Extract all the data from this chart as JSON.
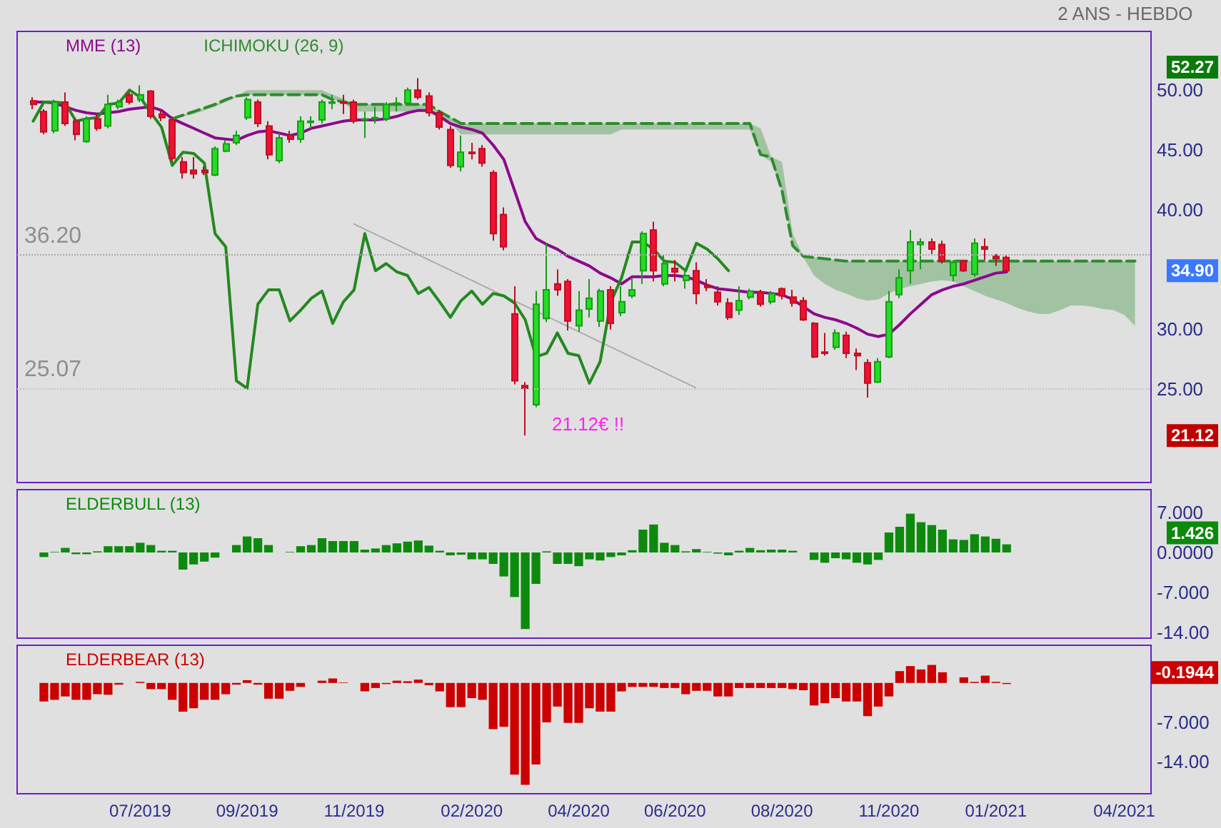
{
  "chart_data": [
    {
      "type": "candlestick",
      "categories": [
        null,
        null,
        null,
        null,
        null,
        null,
        null,
        null,
        null,
        null,
        null,
        null,
        null,
        null,
        null,
        null,
        null,
        null,
        null,
        null,
        null,
        null,
        null,
        null,
        null,
        null,
        null,
        null,
        null,
        null,
        null,
        null,
        null,
        null,
        null,
        null,
        null,
        null,
        null,
        null,
        null,
        null,
        null,
        null,
        null,
        null,
        null,
        null,
        null,
        null,
        null,
        null,
        null,
        null,
        null,
        null,
        null,
        null,
        null,
        null,
        null,
        null,
        null,
        null,
        null,
        null,
        null,
        null,
        null,
        null,
        null,
        null,
        null,
        null,
        null,
        null,
        null,
        null,
        null,
        null,
        null,
        null,
        null,
        null,
        null,
        null,
        null,
        null,
        null,
        null,
        null,
        null,
        null,
        null,
        null,
        null,
        null,
        null,
        null,
        null,
        null,
        null,
        null,
        null,
        null,
        null
      ],
      "ohlc": [
        null,
        [
          49.1,
          49.4,
          48.4,
          48.8
        ],
        [
          48.2,
          48.4,
          46.3,
          46.5
        ],
        [
          46.6,
          49.2,
          46.4,
          49.0
        ],
        [
          49.0,
          49.8,
          47.0,
          47.2
        ],
        [
          47.4,
          47.6,
          45.8,
          46.3
        ],
        [
          45.7,
          47.8,
          45.6,
          47.6
        ],
        [
          47.6,
          48.0,
          46.6,
          46.8
        ],
        [
          47.0,
          49.6,
          46.8,
          48.8
        ],
        [
          48.6,
          49.2,
          48.4,
          49.0
        ],
        [
          49.6,
          49.8,
          48.8,
          49.0
        ],
        [
          49.2,
          50.4,
          49.0,
          49.6
        ],
        [
          49.9,
          50.0,
          47.6,
          47.8
        ],
        [
          48.0,
          48.4,
          47.4,
          47.7
        ],
        [
          47.5,
          47.8,
          44.0,
          44.3
        ],
        [
          44.0,
          44.4,
          42.6,
          43.1
        ],
        [
          43.3,
          44.4,
          42.6,
          43.0
        ],
        [
          43.3,
          43.6,
          42.9,
          43.1
        ],
        [
          42.9,
          45.3,
          42.8,
          45.1
        ],
        [
          44.9,
          45.8,
          44.8,
          45.5
        ],
        [
          45.6,
          46.6,
          45.4,
          46.2
        ],
        [
          47.7,
          49.4,
          47.5,
          49.2
        ],
        [
          49.0,
          49.2,
          46.9,
          47.2
        ],
        [
          47.0,
          47.4,
          44.2,
          44.6
        ],
        [
          44.1,
          46.4,
          43.9,
          46.0
        ],
        [
          46.2,
          46.6,
          45.6,
          45.9
        ],
        [
          45.9,
          47.8,
          45.6,
          47.4
        ],
        [
          47.3,
          47.8,
          46.8,
          47.4
        ],
        [
          47.5,
          49.2,
          47.2,
          49.0
        ],
        [
          48.9,
          49.6,
          48.4,
          49.0
        ],
        [
          49.0,
          49.6,
          48.0,
          48.9
        ],
        [
          49.0,
          49.2,
          47.2,
          47.4
        ],
        [
          47.5,
          48.2,
          46.0,
          47.6
        ],
        [
          47.6,
          48.6,
          47.2,
          47.7
        ],
        [
          47.6,
          49.0,
          47.4,
          48.8
        ],
        [
          48.8,
          49.4,
          48.2,
          48.9
        ],
        [
          48.9,
          50.2,
          48.7,
          50.0
        ],
        [
          50.0,
          51.0,
          49.2,
          49.4
        ],
        [
          49.5,
          49.8,
          47.8,
          48.1
        ],
        [
          48.1,
          48.3,
          46.7,
          46.9
        ],
        [
          46.7,
          47.0,
          43.5,
          43.7
        ],
        [
          43.6,
          46.2,
          43.2,
          44.8
        ],
        [
          44.8,
          45.6,
          44.2,
          44.7
        ],
        [
          45.1,
          45.4,
          43.6,
          43.9
        ],
        [
          43.1,
          43.3,
          37.4,
          38.0
        ],
        [
          39.6,
          40.2,
          36.6,
          36.9
        ],
        [
          31.3,
          33.6,
          25.4,
          25.7
        ],
        [
          25.3,
          25.6,
          21.12,
          25.07
        ],
        [
          23.7,
          33.2,
          23.5,
          32.1
        ],
        [
          30.9,
          37.2,
          30.6,
          33.3
        ],
        [
          33.8,
          35.0,
          32.8,
          33.3
        ],
        [
          34.0,
          34.2,
          29.9,
          30.7
        ],
        [
          30.3,
          33.2,
          29.8,
          31.6
        ],
        [
          31.7,
          34.2,
          31.0,
          32.6
        ],
        [
          30.7,
          33.4,
          30.2,
          33.2
        ],
        [
          33.3,
          33.6,
          30.0,
          30.5
        ],
        [
          31.4,
          33.6,
          31.1,
          32.3
        ],
        [
          32.8,
          34.3,
          32.6,
          33.3
        ],
        [
          34.9,
          38.2,
          33.8,
          38.0
        ],
        [
          38.3,
          39.0,
          34.0,
          34.9
        ],
        [
          33.8,
          36.2,
          33.6,
          35.5
        ],
        [
          35.1,
          35.8,
          34.0,
          34.8
        ],
        [
          34.1,
          35.0,
          33.4,
          34.5
        ],
        [
          34.9,
          35.6,
          32.1,
          33.0
        ],
        [
          33.6,
          34.2,
          33.2,
          33.5
        ],
        [
          33.1,
          33.6,
          32.0,
          32.3
        ],
        [
          32.2,
          32.6,
          30.8,
          31.0
        ],
        [
          31.6,
          33.6,
          31.2,
          32.4
        ],
        [
          32.7,
          33.4,
          32.5,
          33.2
        ],
        [
          33.1,
          33.3,
          31.9,
          32.1
        ],
        [
          32.3,
          33.2,
          32.1,
          33.0
        ],
        [
          33.4,
          33.5,
          32.5,
          32.8
        ],
        [
          32.7,
          33.3,
          31.9,
          32.2
        ],
        [
          32.4,
          32.7,
          30.7,
          30.8
        ],
        [
          30.5,
          30.6,
          27.6,
          27.7
        ],
        [
          28.1,
          29.7,
          27.8,
          28.0
        ],
        [
          28.5,
          30.0,
          28.3,
          29.7
        ],
        [
          29.5,
          29.8,
          27.6,
          28.0
        ],
        [
          28.0,
          28.4,
          26.6,
          27.8
        ],
        [
          27.2,
          27.5,
          24.3,
          25.5
        ],
        [
          25.6,
          27.6,
          25.5,
          27.3
        ],
        [
          27.7,
          33.2,
          27.6,
          32.3
        ],
        [
          32.9,
          35.0,
          32.6,
          34.3
        ],
        [
          34.9,
          38.3,
          33.8,
          37.3
        ],
        [
          37.1,
          37.6,
          35.0,
          37.3
        ],
        [
          37.3,
          37.6,
          36.3,
          36.7
        ],
        [
          37.1,
          37.4,
          35.5,
          35.7
        ],
        [
          34.5,
          35.8,
          34.0,
          35.6
        ],
        [
          35.7,
          35.8,
          34.8,
          34.9
        ],
        [
          34.6,
          37.6,
          34.4,
          37.2
        ],
        [
          36.9,
          37.6,
          35.8,
          36.7
        ],
        [
          36.1,
          36.3,
          35.3,
          35.9
        ],
        [
          36.0,
          36.2,
          34.8,
          34.9
        ],
        null,
        null,
        null,
        null,
        null,
        null,
        null,
        null,
        null,
        null,
        null,
        null,
        null
      ],
      "series": [
        {
          "name": "MME (13)",
          "type": "line",
          "color": "#8b0a8b",
          "values": [
            null,
            49.0,
            49.0,
            48.9,
            48.6,
            48.3,
            48.1,
            48.0,
            48.1,
            48.2,
            48.4,
            48.5,
            48.6,
            48.3,
            47.6,
            47.2,
            46.8,
            46.4,
            46.0,
            45.9,
            45.8,
            46.2,
            46.5,
            46.6,
            46.4,
            46.2,
            46.4,
            46.8,
            47.0,
            47.2,
            47.4,
            47.5,
            47.5,
            47.5,
            47.6,
            47.8,
            48.1,
            48.3,
            48.3,
            47.8,
            47.2,
            46.9,
            46.7,
            46.4,
            45.4,
            44.2,
            41.6,
            39.0,
            37.6,
            37.1,
            36.7,
            36.1,
            35.7,
            35.3,
            34.7,
            34.3,
            33.8,
            34.4,
            34.4,
            34.4,
            34.5,
            34.5,
            34.4,
            34.1,
            33.7,
            33.4,
            33.3,
            33.2,
            33.1,
            33.1,
            33.0,
            32.9,
            32.5,
            31.9,
            31.3,
            31.0,
            30.8,
            30.5,
            30.1,
            29.6,
            29.4,
            29.6,
            30.4,
            31.3,
            32.1,
            32.9,
            33.3,
            33.6,
            33.8,
            34.1,
            34.4,
            34.7,
            34.8,
            null,
            null,
            null,
            null,
            null,
            null,
            null,
            null,
            null,
            null,
            null,
            null,
            null
          ]
        },
        {
          "name": "ICHIMOKU (26, 9)",
          "type": "line",
          "color": "#2e8b2e",
          "line_style": "dashed",
          "values": [
            null,
            null,
            null,
            null,
            null,
            null,
            null,
            null,
            null,
            null,
            null,
            null,
            null,
            null,
            47.6,
            47.9,
            48.2,
            48.5,
            48.8,
            49.2,
            49.5,
            49.6,
            49.6,
            49.6,
            49.6,
            49.6,
            49.6,
            49.6,
            49.6,
            49.2,
            49.0,
            48.8,
            48.8,
            48.8,
            48.8,
            48.8,
            48.8,
            48.8,
            48.8,
            48.2,
            47.7,
            47.2,
            47.2,
            47.2,
            47.2,
            47.2,
            47.2,
            47.2,
            47.2,
            47.2,
            47.2,
            47.2,
            47.2,
            47.2,
            47.2,
            47.2,
            47.2,
            47.2,
            47.2,
            47.2,
            47.2,
            47.2,
            47.2,
            47.2,
            47.2,
            47.2,
            47.2,
            47.2,
            47.2,
            44.6,
            44.4,
            41.6,
            37.0,
            36.1,
            36.0,
            35.9,
            35.8,
            35.7,
            35.7,
            35.7,
            35.7,
            35.7,
            35.7,
            35.7,
            35.7,
            35.7,
            35.7,
            35.7,
            35.7,
            35.7,
            35.7,
            35.7,
            35.7,
            35.7,
            35.7,
            35.7,
            35.7,
            35.7,
            35.7,
            35.7,
            35.7,
            35.7,
            35.7,
            35.7,
            35.7,
            null
          ],
          "lower": [
            null,
            null,
            null,
            null,
            null,
            null,
            null,
            null,
            null,
            null,
            null,
            null,
            null,
            null,
            47.6,
            47.8,
            48.0,
            48.3,
            48.6,
            49.0,
            49.4,
            49.6,
            49.6,
            49.6,
            49.6,
            49.6,
            49.6,
            49.6,
            49.6,
            49.2,
            49.0,
            48.2,
            48.2,
            48.2,
            48.2,
            48.2,
            48.2,
            48.2,
            48.2,
            47.8,
            47.3,
            46.3,
            46.3,
            46.3,
            46.3,
            46.3,
            46.3,
            46.3,
            46.3,
            46.3,
            46.3,
            46.3,
            46.3,
            46.3,
            46.3,
            46.3,
            46.7,
            46.7,
            46.7,
            46.7,
            46.7,
            46.7,
            46.7,
            46.7,
            46.7,
            46.7,
            46.7,
            46.7,
            46.7,
            44.6,
            44.0,
            41.6,
            37.0,
            36.0,
            34.5,
            33.8,
            33.3,
            33.0,
            32.6,
            32.4,
            32.5,
            33.0,
            33.4,
            33.6,
            33.8,
            34.0,
            34.1,
            34.0,
            33.6,
            33.2,
            32.8,
            32.5,
            32.2,
            31.8,
            31.5,
            31.3,
            31.3,
            31.6,
            32.0,
            32.0,
            31.9,
            31.7,
            31.6,
            31.2,
            30.3,
            null
          ],
          "upper": [
            null,
            null,
            null,
            null,
            null,
            null,
            null,
            null,
            null,
            null,
            null,
            null,
            null,
            null,
            47.6,
            47.9,
            48.2,
            48.5,
            48.8,
            49.2,
            49.5,
            50.0,
            50.0,
            50.0,
            50.0,
            50.0,
            50.0,
            50.0,
            50.0,
            49.6,
            49.3,
            48.8,
            48.8,
            48.8,
            48.8,
            48.8,
            48.8,
            48.8,
            48.8,
            48.2,
            47.7,
            47.2,
            47.2,
            47.2,
            47.2,
            47.2,
            47.2,
            47.2,
            47.2,
            47.2,
            47.2,
            47.2,
            47.2,
            47.2,
            47.2,
            47.2,
            47.2,
            47.2,
            47.2,
            47.2,
            47.2,
            47.2,
            47.2,
            47.2,
            47.2,
            47.2,
            47.2,
            47.2,
            47.2,
            46.8,
            44.4,
            44.0,
            38.0,
            36.1,
            36.0,
            35.9,
            35.8,
            35.7,
            35.7,
            35.7,
            35.7,
            35.7,
            35.7,
            35.7,
            35.7,
            35.7,
            35.7,
            35.7,
            35.7,
            35.7,
            35.7,
            35.7,
            35.7,
            35.7,
            35.7,
            35.7,
            35.7,
            35.7,
            35.7,
            35.7,
            35.7,
            35.7,
            35.7,
            35.7,
            35.7,
            null
          ]
        },
        {
          "type": "line",
          "color": "#23891f",
          "values": [
            null,
            47.4,
            49.0,
            49.0,
            48.9,
            47.4,
            47.6,
            47.7,
            48.8,
            48.9,
            50.0,
            49.4,
            48.1,
            46.9,
            43.7,
            44.8,
            44.7,
            43.9,
            38.0,
            36.9,
            25.7,
            25.07,
            32.1,
            33.3,
            33.3,
            30.7,
            31.6,
            32.6,
            33.2,
            30.5,
            32.3,
            33.3,
            38.0,
            34.9,
            35.5,
            34.8,
            34.5,
            33.0,
            33.5,
            32.3,
            31.0,
            32.4,
            33.2,
            32.1,
            33.0,
            32.8,
            32.2,
            30.8,
            27.7,
            28.0,
            29.7,
            28.0,
            27.8,
            25.5,
            27.3,
            32.3,
            34.3,
            37.3,
            37.3,
            36.7,
            35.7,
            35.6,
            34.9,
            37.2,
            36.7,
            35.9,
            34.9,
            null,
            null,
            null,
            null,
            null,
            null,
            null,
            null,
            null,
            null,
            null,
            null,
            null,
            null,
            null,
            null,
            null,
            null,
            null,
            null,
            null,
            null,
            null,
            null,
            null,
            null,
            null,
            null,
            null,
            null,
            null,
            null,
            null,
            null,
            null,
            null,
            null,
            null,
            null
          ]
        },
        {
          "type": "line",
          "color": "#a8a8a8",
          "line_style": "dotted",
          "values": [
            null,
            null,
            null,
            null,
            null,
            null,
            null,
            null,
            null,
            null,
            null,
            null,
            null,
            null,
            null,
            null,
            null,
            null,
            null,
            null,
            null,
            null,
            null,
            null,
            null,
            null,
            null,
            null,
            null,
            null,
            null,
            38.8,
            null,
            null,
            null,
            null,
            null,
            null,
            null,
            null,
            null,
            null,
            null,
            null,
            null,
            null,
            null,
            null,
            null,
            null,
            null,
            null,
            null,
            null,
            null,
            null,
            null,
            null,
            null,
            null,
            null,
            null,
            null,
            25.1,
            null,
            null,
            null,
            null,
            null,
            null,
            null,
            null,
            null,
            null,
            null,
            null,
            null,
            null,
            null,
            null,
            null,
            null,
            null,
            null,
            null,
            null,
            null,
            null,
            null,
            null,
            null,
            null,
            null,
            null,
            null,
            null,
            null,
            null,
            null,
            null,
            null,
            null,
            null,
            null,
            null,
            null
          ]
        }
      ],
      "ylim": [
        17.2,
        54.9
      ],
      "yticks": [
        {
          "value": 25,
          "label": "25.00"
        },
        {
          "value": 30,
          "label": "30.00"
        },
        {
          "value": 40,
          "label": "40.00"
        },
        {
          "value": 45,
          "label": "45.00"
        },
        {
          "value": 50,
          "label": "50.00"
        }
      ],
      "marker": "none",
      "legend": "top left",
      "tick_labels": "y",
      "ref_lines": [
        {
          "axis": "y",
          "value": 25.07,
          "label": "25.07",
          "color": "#c4c4c4",
          "line_style": "dotted"
        },
        {
          "axis": "y",
          "value": 36.2,
          "label": "36.20",
          "color": "#a8a8a8",
          "line_style": "dotted"
        }
      ],
      "annotations": [
        "2 ANS - HEBDO",
        "21.12€ !!",
        "52.27",
        "34.90",
        "21.12"
      ]
    },
    {
      "type": "bar",
      "categories": [
        null,
        null,
        null,
        null,
        null,
        null,
        null,
        null,
        null,
        null,
        null,
        null,
        null,
        null,
        null,
        null,
        null,
        null,
        null,
        null,
        null,
        null,
        null,
        null,
        null,
        null,
        null,
        null,
        null,
        null,
        null,
        null,
        null,
        null,
        null,
        null,
        null,
        null,
        null,
        null,
        null,
        null,
        null,
        null,
        null,
        null,
        null,
        null,
        null,
        null,
        null,
        null,
        null,
        null,
        null,
        null,
        null,
        null,
        null,
        null,
        null,
        null,
        null,
        null,
        null,
        null,
        null,
        null,
        null,
        null,
        null,
        null,
        null,
        null,
        null,
        null,
        null,
        null,
        null,
        null,
        null,
        null,
        null,
        null,
        null,
        null,
        null,
        null,
        null,
        null,
        null,
        null,
        null,
        null,
        null,
        null,
        null,
        null,
        null,
        null,
        null,
        null,
        null,
        null,
        null,
        null
      ],
      "series": [
        {
          "name": "ELDERBULL (13)",
          "color": "#0d8a0d",
          "values": [
            null,
            null,
            -0.8,
            0.1,
            0.8,
            -0.3,
            -0.3,
            0.2,
            1.1,
            1.1,
            1.1,
            1.7,
            1.3,
            0.3,
            0.3,
            -3.0,
            -2.1,
            -1.6,
            -0.9,
            null,
            1.3,
            2.8,
            2.5,
            1.3,
            null,
            0.1,
            1.1,
            1.3,
            2.5,
            2.0,
            2.0,
            2.0,
            0.5,
            0.7,
            1.3,
            1.6,
            1.9,
            2.1,
            1.2,
            0.3,
            -0.5,
            -0.4,
            -1.2,
            -1.2,
            -2.0,
            -4.2,
            -7.8,
            -13.4,
            -5.5,
            0.2,
            -2.0,
            -2.0,
            -2.4,
            -1.2,
            -1.4,
            -0.8,
            -0.5,
            0.4,
            4.0,
            4.9,
            1.7,
            1.3,
            0.2,
            0.6,
            0.1,
            -0.2,
            -0.5,
            0.3,
            0.8,
            0.4,
            0.5,
            0.5,
            0.3,
            null,
            -1.3,
            -1.8,
            -1.0,
            -1.2,
            -1.8,
            -2.1,
            -1.3,
            3.5,
            4.5,
            6.8,
            5.3,
            4.8,
            4.0,
            2.3,
            2.2,
            3.2,
            2.8,
            2.4,
            1.426,
            null,
            null,
            null,
            null,
            null,
            null,
            null,
            null,
            null,
            null,
            null,
            null,
            null
          ]
        }
      ],
      "ylim": [
        -15,
        11
      ],
      "yticks": [
        {
          "value": 7,
          "label": "7.000"
        },
        {
          "value": 0,
          "label": "0.0000"
        },
        {
          "value": -7,
          "label": "-7.000"
        },
        {
          "value": -14,
          "label": "-14.00"
        }
      ],
      "legend": "top left",
      "tick_labels": "y",
      "annotations": [
        "1.426"
      ]
    },
    {
      "type": "bar",
      "categories": [
        null,
        null,
        null,
        null,
        null,
        null,
        null,
        null,
        null,
        null,
        null,
        "07/2019",
        null,
        null,
        null,
        null,
        null,
        null,
        null,
        null,
        null,
        "09/2019",
        null,
        null,
        null,
        null,
        null,
        null,
        null,
        null,
        null,
        "11/2019",
        null,
        null,
        null,
        null,
        null,
        null,
        null,
        null,
        null,
        null,
        "02/2020",
        null,
        null,
        null,
        null,
        null,
        null,
        null,
        null,
        null,
        "04/2020",
        null,
        null,
        null,
        null,
        null,
        null,
        null,
        null,
        "06/2020",
        null,
        null,
        null,
        null,
        null,
        null,
        null,
        null,
        null,
        "08/2020",
        null,
        null,
        null,
        null,
        null,
        null,
        null,
        null,
        null,
        "11/2020",
        null,
        null,
        null,
        null,
        null,
        null,
        null,
        null,
        null,
        "01/2021",
        null,
        null,
        null,
        null,
        null,
        null,
        null,
        null,
        null,
        null,
        null,
        "04/2021",
        null,
        null
      ],
      "series": [
        {
          "name": "ELDERBEAR (13)",
          "color": "#cc0000",
          "values": [
            null,
            null,
            -3.3,
            -3.0,
            -2.4,
            -3.0,
            -3.0,
            -2.0,
            -2.1,
            -0.3,
            null,
            0.2,
            -1.1,
            -1.1,
            -3.0,
            -5.1,
            -4.5,
            -3.0,
            -3.0,
            -2.0,
            -0.3,
            0.5,
            -0.3,
            -2.8,
            -2.8,
            -1.4,
            -0.7,
            null,
            0.4,
            0.8,
            0.1,
            null,
            -1.5,
            -0.9,
            -0.2,
            0.4,
            0.3,
            0.6,
            -0.4,
            -1.5,
            -4.3,
            -4.3,
            -2.7,
            -3.0,
            -8.2,
            -7.8,
            -16.3,
            -18.1,
            -14.5,
            -7.0,
            -4.2,
            -7.1,
            -7.1,
            -4.5,
            -5.1,
            -5.1,
            -1.5,
            -0.7,
            -0.7,
            -0.7,
            -0.9,
            -0.9,
            -2.0,
            -1.4,
            -1.4,
            -2.4,
            -2.4,
            -0.9,
            -0.9,
            -0.9,
            -0.9,
            -0.9,
            -1.1,
            -1.3,
            -4.0,
            -3.6,
            -2.7,
            -3.3,
            -3.3,
            -5.9,
            -4.2,
            -2.4,
            2.1,
            3.0,
            2.4,
            3.2,
            1.9,
            null,
            1.0,
            0.2,
            1.3,
            0.2,
            -0.1944,
            null,
            null,
            null,
            null,
            null,
            null,
            null,
            null,
            null,
            null,
            null,
            null,
            null
          ]
        }
      ],
      "ylim": [
        -19.7,
        6.7
      ],
      "yticks": [
        {
          "value": -7,
          "label": "-7.000"
        },
        {
          "value": -14,
          "label": "-14.00"
        }
      ],
      "legend": "top left",
      "annotations": [
        "-0.1944"
      ]
    }
  ]
}
